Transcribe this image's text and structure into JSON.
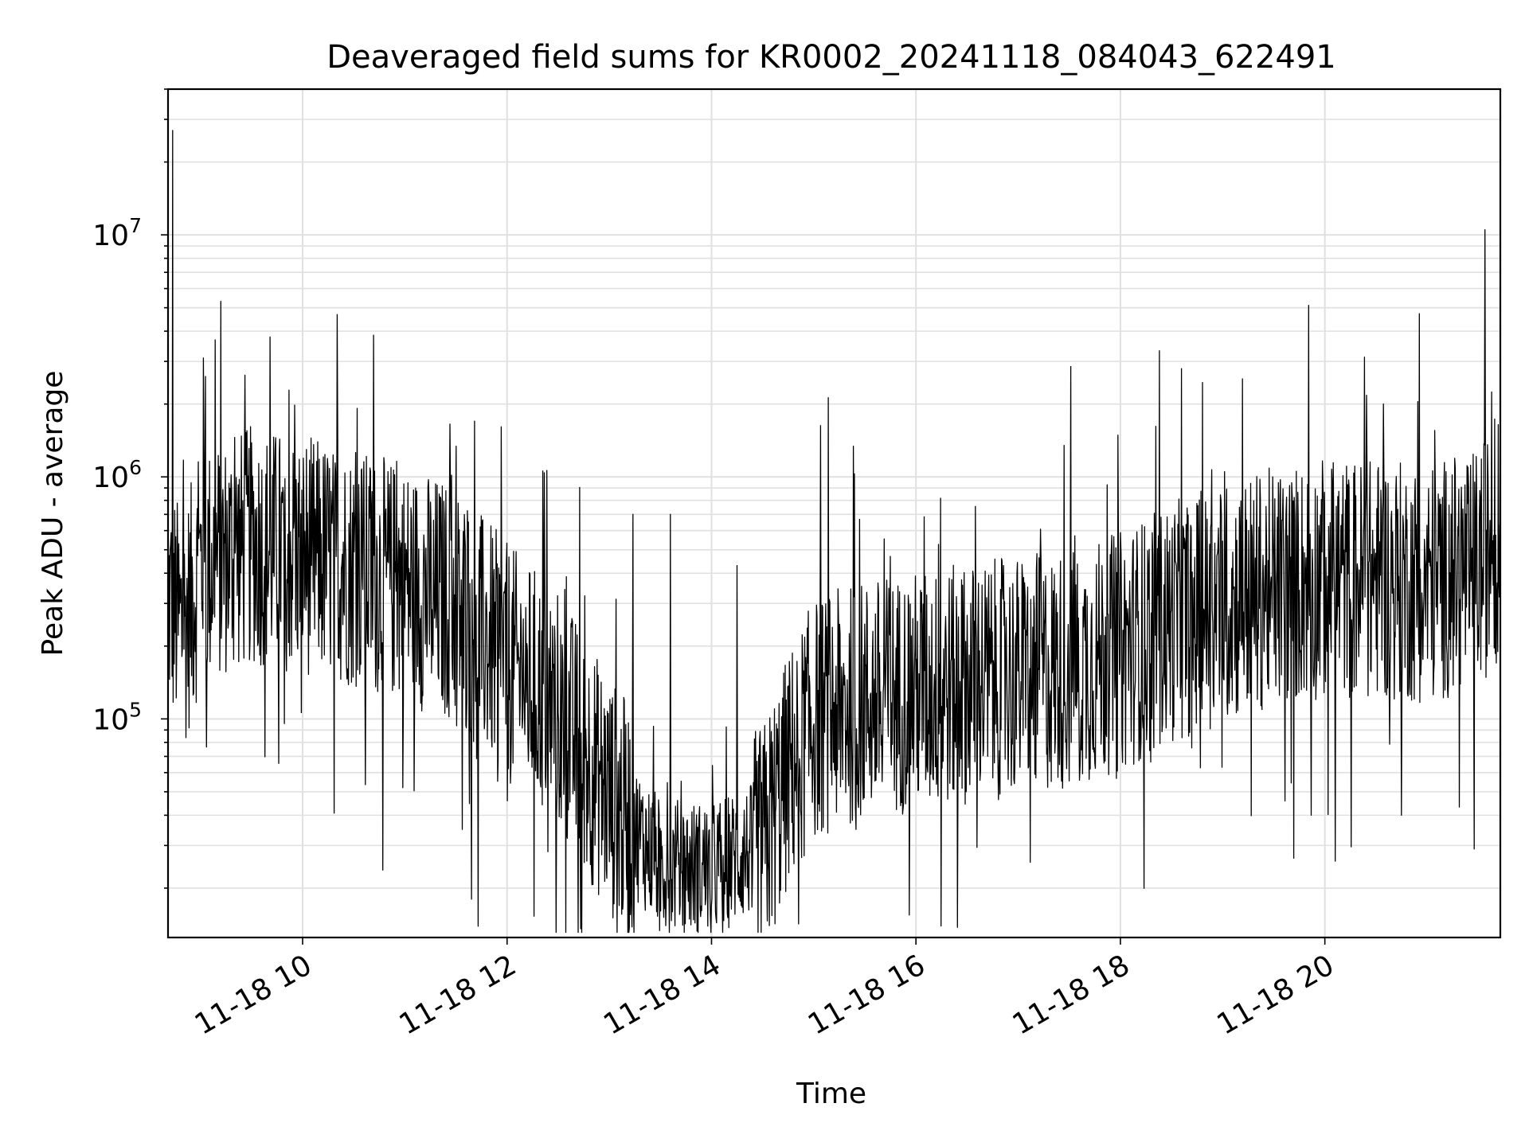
{
  "chart_data": {
    "type": "line",
    "title": "Deaveraged field sums for KR0002_20241118_084043_622491",
    "xlabel": "Time",
    "ylabel": "Peak ADU - average",
    "yscale": "log",
    "grid": true,
    "line_color": "#000000",
    "grid_color": "#e0e0e0",
    "xlim": [
      "2024-11-18 08:41",
      "2024-11-18 21:43"
    ],
    "ylim": [
      12500,
      40000000
    ],
    "x_ticks": [
      {
        "time": "2024-11-18 10:00",
        "label": "11-18 10"
      },
      {
        "time": "2024-11-18 12:00",
        "label": "11-18 12"
      },
      {
        "time": "2024-11-18 14:00",
        "label": "11-18 14"
      },
      {
        "time": "2024-11-18 16:00",
        "label": "11-18 16"
      },
      {
        "time": "2024-11-18 18:00",
        "label": "11-18 18"
      },
      {
        "time": "2024-11-18 20:00",
        "label": "11-18 20"
      }
    ],
    "y_ticks": [
      {
        "value": 100000,
        "base": "10",
        "exp": "5"
      },
      {
        "value": 1000000,
        "base": "10",
        "exp": "6"
      },
      {
        "value": 10000000,
        "base": "10",
        "exp": "7"
      }
    ],
    "series": [
      {
        "baseline": [
          [
            "2024-11-18 08:41",
            320000
          ],
          [
            "2024-11-18 08:50",
            230000
          ],
          [
            "2024-11-18 09:00",
            420000
          ],
          [
            "2024-11-18 09:30",
            520000
          ],
          [
            "2024-11-18 10:00",
            480000
          ],
          [
            "2024-11-18 10:30",
            420000
          ],
          [
            "2024-11-18 11:00",
            360000
          ],
          [
            "2024-11-18 11:30",
            300000
          ],
          [
            "2024-11-18 12:00",
            170000
          ],
          [
            "2024-11-18 12:30",
            110000
          ],
          [
            "2024-11-18 13:00",
            48000
          ],
          [
            "2024-11-18 13:30",
            25000
          ],
          [
            "2024-11-18 14:00",
            24000
          ],
          [
            "2024-11-18 14:30",
            30000
          ],
          [
            "2024-11-18 14:45",
            60000
          ],
          [
            "2024-11-18 15:00",
            100000
          ],
          [
            "2024-11-18 15:30",
            120000
          ],
          [
            "2024-11-18 16:00",
            130000
          ],
          [
            "2024-11-18 16:30",
            140000
          ],
          [
            "2024-11-18 17:00",
            150000
          ],
          [
            "2024-11-18 17:30",
            160000
          ],
          [
            "2024-11-18 18:00",
            190000
          ],
          [
            "2024-11-18 18:30",
            250000
          ],
          [
            "2024-11-18 19:00",
            300000
          ],
          [
            "2024-11-18 19:30",
            350000
          ],
          [
            "2024-11-18 20:00",
            380000
          ],
          [
            "2024-11-18 20:30",
            380000
          ],
          [
            "2024-11-18 21:00",
            360000
          ],
          [
            "2024-11-18 21:30",
            420000
          ],
          [
            "2024-11-18 21:43",
            560000
          ]
        ],
        "spikes": [
          [
            "2024-11-18 08:44",
            27000000
          ],
          [
            "2024-11-18 09:02",
            3100000
          ],
          [
            "2024-11-18 09:03",
            2600000
          ],
          [
            "2024-11-18 11:41",
            1700000
          ],
          [
            "2024-11-18 18:36",
            2800000
          ],
          [
            "2024-11-18 21:34",
            10500000
          ],
          [
            "2024-11-18 10:59",
            52000
          ],
          [
            "2024-11-18 13:14",
            700000
          ],
          [
            "2024-11-18 13:36",
            700000
          ],
          [
            "2024-11-18 14:15",
            430000
          ],
          [
            "2024-11-18 19:52",
            40000
          ],
          [
            "2024-11-18 20:45",
            40000
          ]
        ]
      }
    ]
  }
}
